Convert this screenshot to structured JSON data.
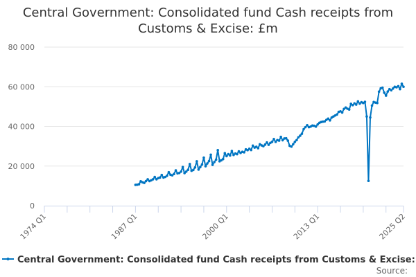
{
  "chart_data": {
    "type": "line",
    "title_lines": [
      "Central Government: Consolidated fund Cash receipts from",
      "Customs & Excise: £m"
    ],
    "xlabel": "",
    "ylabel": "",
    "ylim": [
      0,
      80000
    ],
    "yticks": [
      0,
      20000,
      40000,
      60000,
      80000
    ],
    "ytick_labels": [
      "0",
      "20 000",
      "40 000",
      "60 000",
      "80 000"
    ],
    "x_range": [
      "1974 Q1",
      "2025 Q2"
    ],
    "xtick_labels": [
      "1974 Q1",
      "1987 Q1",
      "2000 Q1",
      "2013 Q1",
      "2025 Q2"
    ],
    "grid": true,
    "legend_position": "bottom",
    "series": [
      {
        "name": "Central Government: Consolidated fund Cash receipts from Customs & Excise: £m",
        "color": "#0075c2",
        "start": "1987 Q1",
        "frequency": "quarterly",
        "values": [
          10500,
          10600,
          10800,
          12300,
          11800,
          11500,
          12400,
          13300,
          12400,
          12800,
          13300,
          14500,
          13300,
          13900,
          14200,
          15500,
          14200,
          14500,
          15100,
          16900,
          15600,
          15300,
          16000,
          17800,
          16300,
          16500,
          17200,
          19500,
          16400,
          17200,
          18100,
          21000,
          17600,
          18000,
          19300,
          22400,
          18200,
          19500,
          20800,
          24200,
          19900,
          21300,
          22500,
          25700,
          20600,
          22000,
          23200,
          28000,
          22400,
          22900,
          23500,
          26500,
          25000,
          26000,
          25300,
          27600,
          25600,
          26300,
          26000,
          27400,
          26600,
          27200,
          26900,
          28400,
          28000,
          28700,
          28100,
          30300,
          29300,
          29700,
          29000,
          31000,
          30400,
          30000,
          30800,
          31900,
          30700,
          31700,
          32200,
          33600,
          32200,
          33100,
          32800,
          34700,
          33000,
          33900,
          34000,
          32800,
          30200,
          29800,
          31000,
          32200,
          33100,
          34500,
          35300,
          36300,
          38600,
          39600,
          40600,
          39600,
          39900,
          40400,
          40300,
          39900,
          41000,
          41800,
          42200,
          42400,
          42500,
          43300,
          43900,
          43000,
          44500,
          45000,
          45500,
          46000,
          47300,
          47600,
          47000,
          48800,
          49500,
          48900,
          48500,
          51400,
          50700,
          51600,
          51000,
          52600,
          51500,
          52200,
          51800,
          52400,
          45000,
          12500,
          44500,
          50500,
          52300,
          52000,
          51800,
          57500,
          59200,
          59500,
          57000,
          55500,
          57600,
          58800,
          58200,
          59100,
          60000,
          59700,
          60300,
          58800,
          61500,
          60000
        ]
      }
    ],
    "source_label": "Source:"
  }
}
